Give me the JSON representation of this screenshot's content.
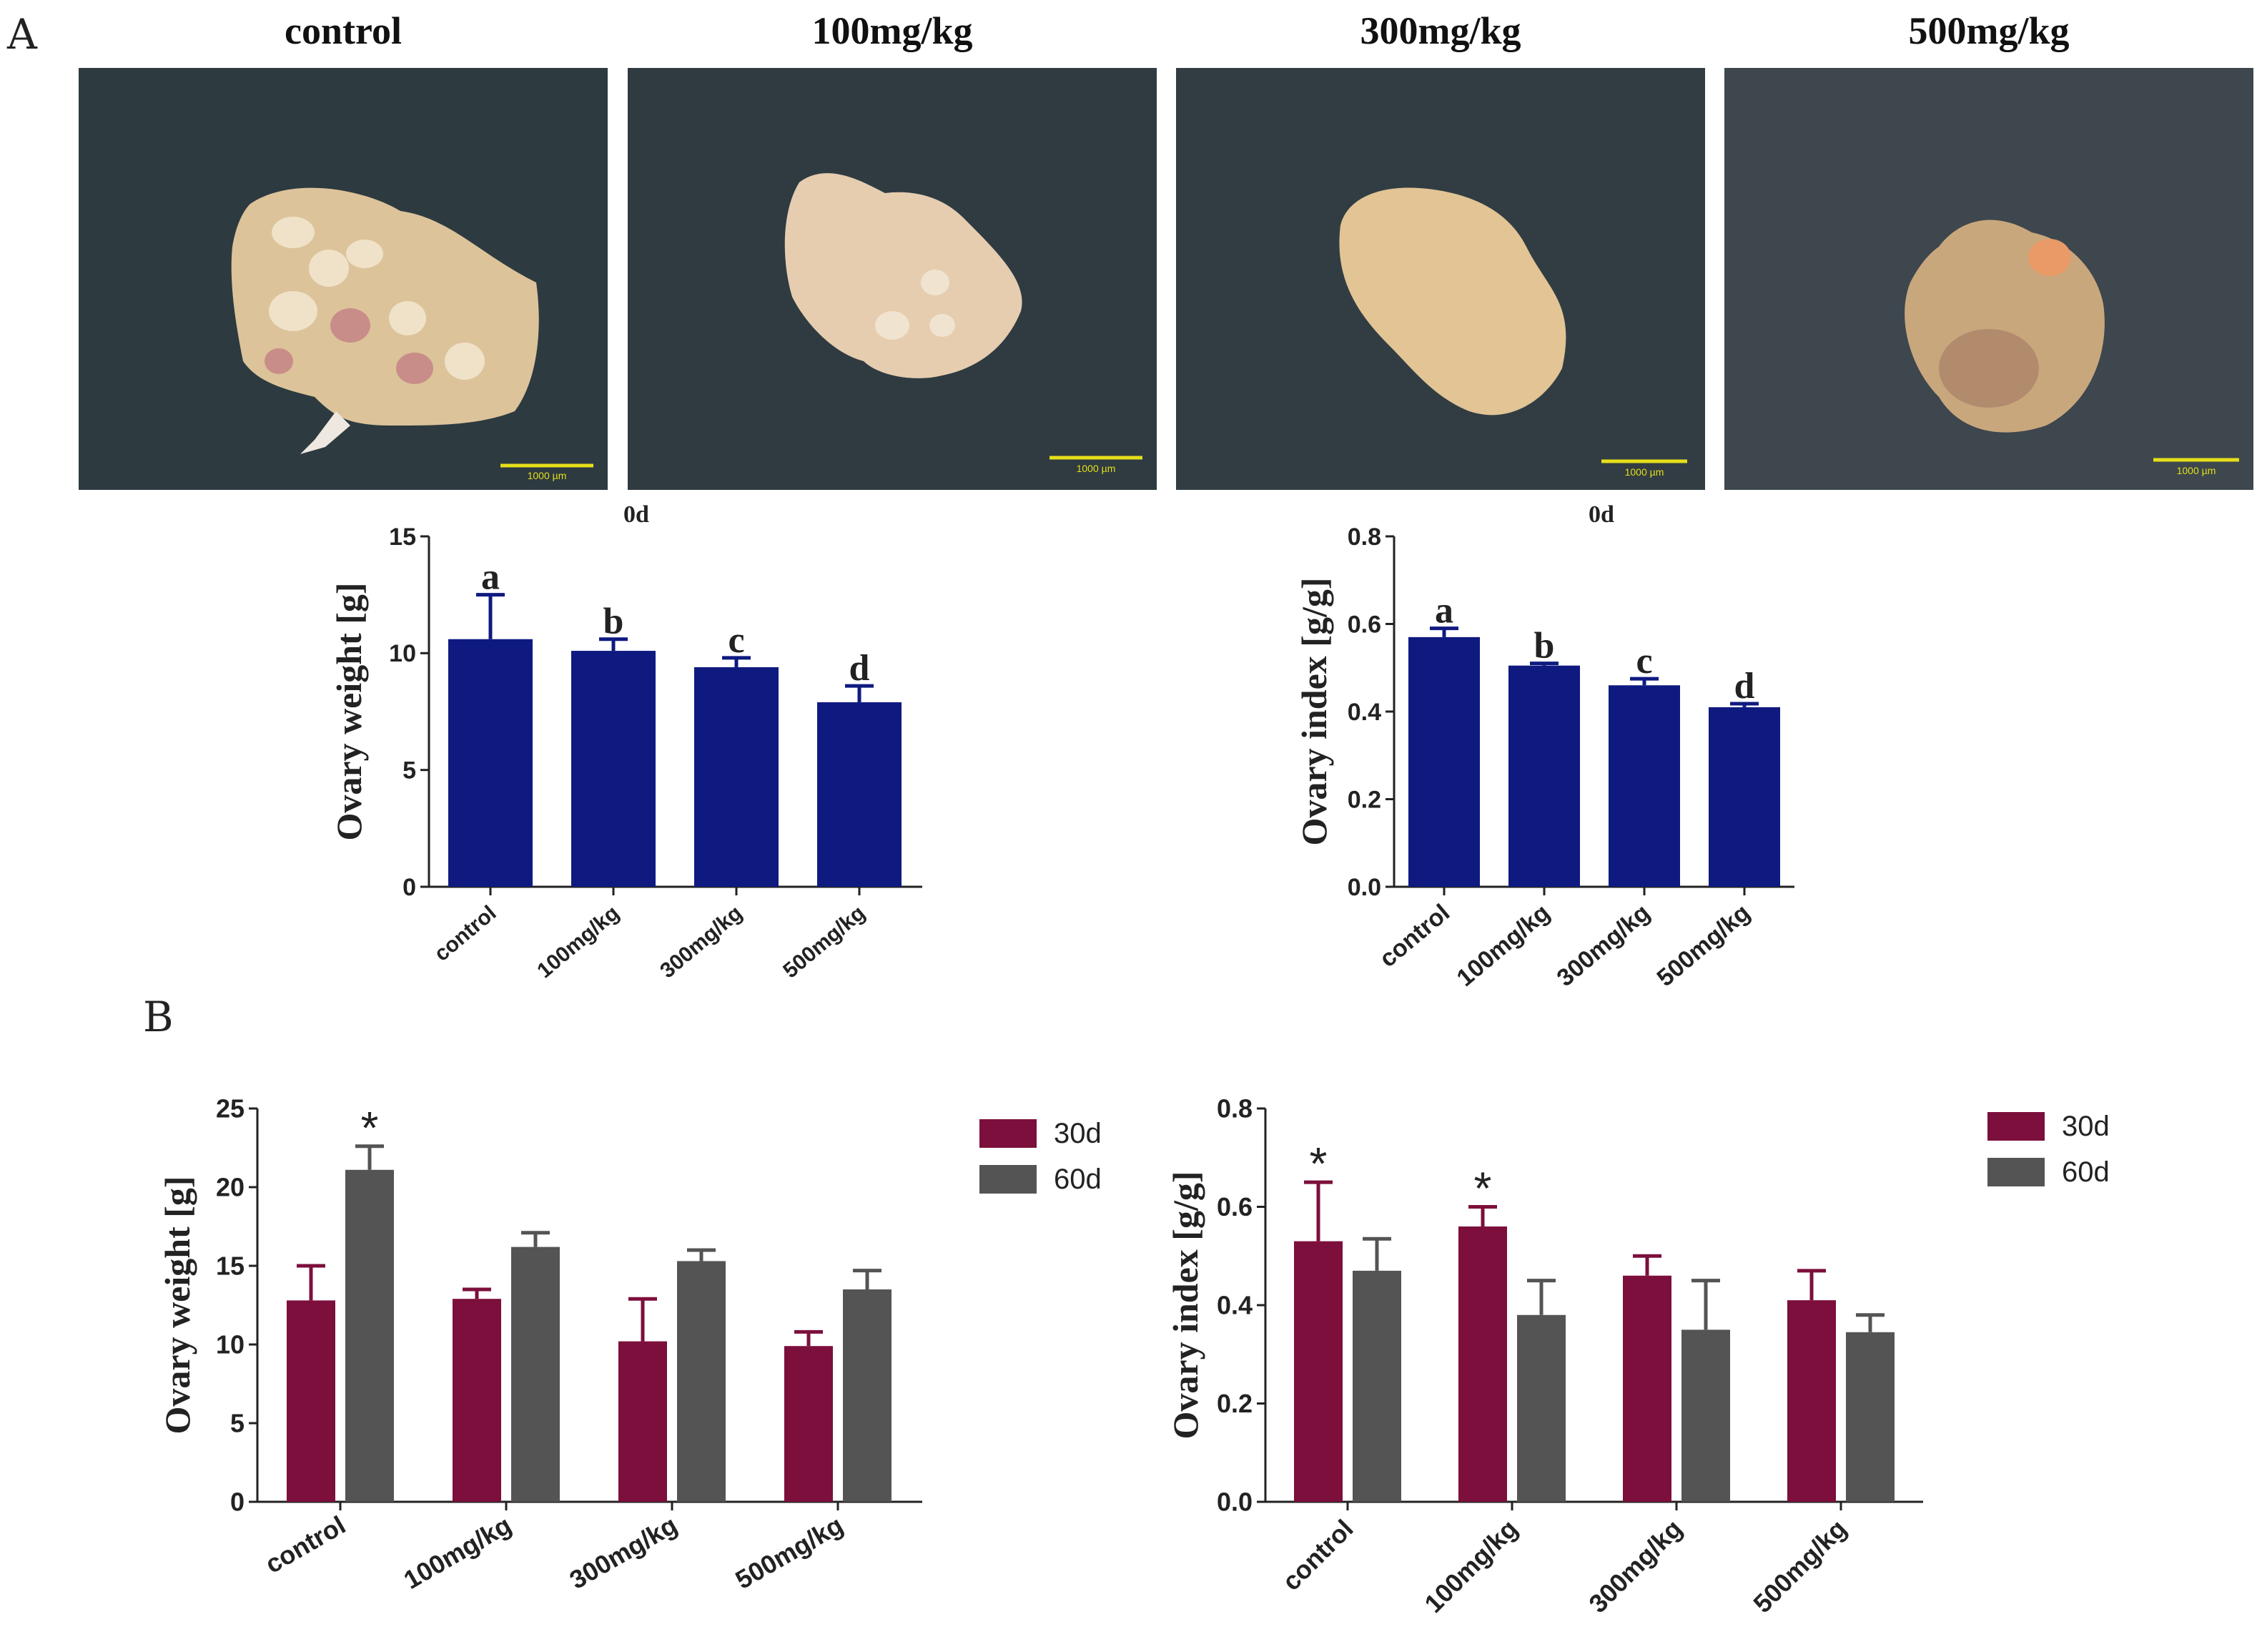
{
  "panel_labels": {
    "a": "A",
    "b": "B"
  },
  "photos": [
    {
      "title": "control",
      "scale_bar": "1000 µm",
      "tissue_color": "#dcc39a",
      "bg_color": "#2d3a40"
    },
    {
      "title": "100mg/kg",
      "scale_bar": "1000 µm",
      "tissue_color": "#e6cdb0",
      "bg_color": "#2f3b41"
    },
    {
      "title": "300mg/kg",
      "scale_bar": "1000 µm",
      "tissue_color": "#e2c495",
      "bg_color": "#323d43"
    },
    {
      "title": "500mg/kg",
      "scale_bar": "1000 µm",
      "tissue_color": "#c9a77d",
      "bg_color": "#3d474d"
    }
  ],
  "colors": {
    "navy": "#0f1a80",
    "maroon": "#7c0f3b",
    "gray": "#545454",
    "scale_bar": "#e6df1a"
  },
  "chart_data": [
    {
      "id": "weight0d",
      "type": "bar",
      "title": "0d",
      "ylabel": "Ovary weight [g]",
      "ylim": [
        0,
        15
      ],
      "yticks": [
        "0",
        "5",
        "10",
        "15"
      ],
      "categories": [
        "control",
        "100mg/kg",
        "300mg/kg",
        "500mg/kg"
      ],
      "series": [
        {
          "name": "0d",
          "color": "#0f1a80",
          "values": [
            10.6,
            10.1,
            9.4,
            7.9
          ],
          "errors": [
            1.9,
            0.5,
            0.4,
            0.7
          ]
        }
      ],
      "annotations": [
        "a",
        "b",
        "c",
        "d"
      ]
    },
    {
      "id": "index0d",
      "type": "bar",
      "title": "0d",
      "ylabel": "Ovary index [g/g]",
      "ylim": [
        0,
        0.8
      ],
      "yticks": [
        "0.0",
        "0.2",
        "0.4",
        "0.6",
        "0.8"
      ],
      "categories": [
        "control",
        "100mg/kg",
        "300mg/kg",
        "500mg/kg"
      ],
      "series": [
        {
          "name": "0d",
          "color": "#0f1a80",
          "values": [
            0.57,
            0.505,
            0.46,
            0.41
          ],
          "errors": [
            0.02,
            0.005,
            0.015,
            0.008
          ]
        }
      ],
      "annotations": [
        "a",
        "b",
        "c",
        "d"
      ]
    },
    {
      "id": "weightB",
      "type": "bar",
      "title": "",
      "ylabel": "Ovary weight [g]",
      "ylim": [
        0,
        25
      ],
      "yticks": [
        "0",
        "5",
        "10",
        "15",
        "20",
        "25"
      ],
      "categories": [
        "control",
        "100mg/kg",
        "300mg/kg",
        "500mg/kg"
      ],
      "series": [
        {
          "name": "30d",
          "color": "#7c0f3b",
          "values": [
            12.8,
            12.9,
            10.2,
            9.9
          ],
          "errors": [
            2.2,
            0.6,
            2.7,
            0.9
          ],
          "marks": [
            "",
            "",
            "",
            ""
          ]
        },
        {
          "name": "60d",
          "color": "#545454",
          "values": [
            21.1,
            16.2,
            15.3,
            13.5
          ],
          "errors": [
            1.5,
            0.9,
            0.7,
            1.2
          ],
          "marks": [
            "*",
            "",
            "",
            ""
          ]
        }
      ],
      "legend_position": "top-right"
    },
    {
      "id": "indexB",
      "type": "bar",
      "title": "",
      "ylabel": "Ovary index [g/g]",
      "ylim": [
        0,
        0.8
      ],
      "yticks": [
        "0.0",
        "0.2",
        "0.4",
        "0.6",
        "0.8"
      ],
      "categories": [
        "control",
        "100mg/kg",
        "300mg/kg",
        "500mg/kg"
      ],
      "series": [
        {
          "name": "30d",
          "color": "#7c0f3b",
          "values": [
            0.53,
            0.56,
            0.46,
            0.41
          ],
          "errors": [
            0.12,
            0.04,
            0.04,
            0.06
          ],
          "marks": [
            "*",
            "*",
            "",
            ""
          ]
        },
        {
          "name": "60d",
          "color": "#545454",
          "values": [
            0.47,
            0.38,
            0.35,
            0.345
          ],
          "errors": [
            0.065,
            0.07,
            0.1,
            0.035
          ],
          "marks": [
            "",
            "",
            "",
            ""
          ]
        }
      ],
      "legend_position": "top-right"
    }
  ]
}
